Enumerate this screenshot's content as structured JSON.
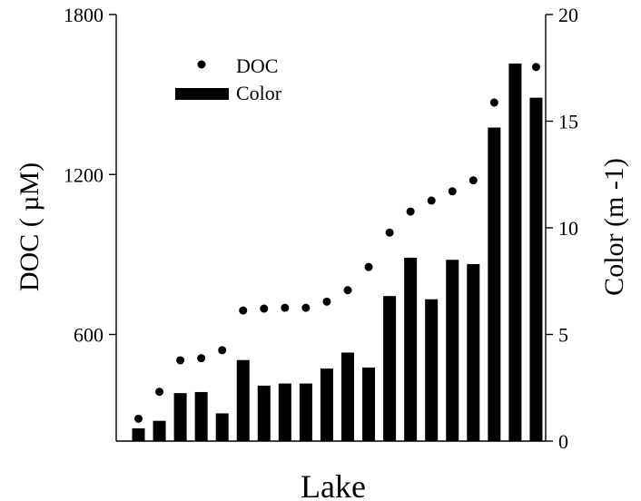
{
  "chart_data": {
    "type": "bar",
    "xlabel": "Lake",
    "ylabel_left": "DOC ( µM)",
    "ylabel_right": "Color (m -1)",
    "y_left": {
      "lim": [
        200,
        1800
      ],
      "ticks": [
        600,
        1200,
        1800
      ]
    },
    "y_right": {
      "lim": [
        0,
        20
      ],
      "ticks": [
        0,
        5,
        10,
        15,
        20
      ]
    },
    "legend": {
      "placement": "top-left",
      "entries": [
        {
          "label": "DOC",
          "marker": "dot"
        },
        {
          "label": "Color",
          "marker": "bar"
        }
      ]
    },
    "series": [
      {
        "name": "DOC",
        "kind": "scatter",
        "axis": "left",
        "values": [
          284,
          385,
          503,
          511,
          541,
          690,
          697,
          700,
          700,
          723,
          766,
          853,
          982,
          1061,
          1102,
          1137,
          1178,
          1470,
          1573,
          1603
        ]
      },
      {
        "name": "Color",
        "kind": "bar",
        "axis": "right",
        "values": [
          0.6,
          0.95,
          2.25,
          2.3,
          1.3,
          3.8,
          2.6,
          2.7,
          2.7,
          3.4,
          4.15,
          3.45,
          6.8,
          8.6,
          6.65,
          8.5,
          8.3,
          14.7,
          17.7,
          16.1
        ]
      }
    ],
    "colors": {
      "bar": "#000000",
      "dot": "#000000"
    }
  }
}
